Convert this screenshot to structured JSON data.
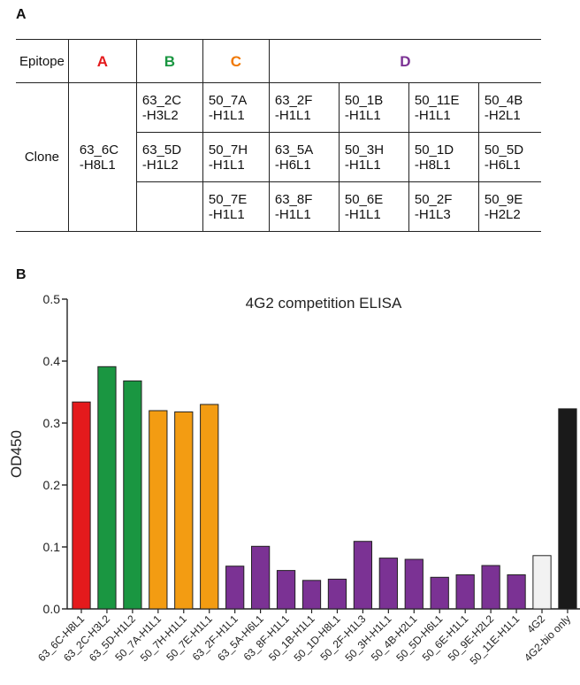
{
  "panel_a": {
    "label": "A",
    "header": {
      "epitope": "Epitope",
      "A": "A",
      "B": "B",
      "C": "C",
      "D": "D"
    },
    "colors": {
      "A": "#e41a1c",
      "B": "#1a9641",
      "C": "#f07800",
      "D": "#7b3294"
    },
    "clone_label": "Clone",
    "clone_A": "63_6C\n-H8L1",
    "clone_B": [
      "63_2C\n-H3L2",
      "63_5D\n-H1L2",
      ""
    ],
    "clone_C": [
      "50_7A\n-H1L1",
      "50_7H\n-H1L1",
      "50_7E\n-H1L1"
    ],
    "clone_D": [
      [
        "63_2F\n-H1L1",
        "50_1B\n-H1L1",
        "50_11E\n-H1L1",
        "50_4B\n-H2L1"
      ],
      [
        "63_5A\n-H6L1",
        "50_3H\n-H1L1",
        "50_1D\n-H8L1",
        "50_5D\n-H6L1"
      ],
      [
        "63_8F\n-H1L1",
        "50_6E\n-H1L1",
        "50_2F\n-H1L3",
        "50_9E\n-H2L2"
      ]
    ]
  },
  "panel_b": {
    "label": "B"
  },
  "chart_data": {
    "type": "bar",
    "title": "4G2 competition ELISA",
    "xlabel": "",
    "ylabel": "OD450",
    "ylim": [
      0.0,
      0.5
    ],
    "yticks": [
      "0.0",
      "0.1",
      "0.2",
      "0.3",
      "0.4",
      "0.5"
    ],
    "categories": [
      "63_6C-H8L1",
      "63_2C-H3L2",
      "63_5D-H1L2",
      "50_7A-H1L1",
      "50_7H-H1L1",
      "50_7E-H1L1",
      "63_2F-H1L1",
      "63_5A-H6L1",
      "63_8F-H1L1",
      "50_1B-H1L1",
      "50_1D-H8L1",
      "50_2F-H1L3",
      "50_3H-H1L1",
      "50_4B-H2L1",
      "50_5D-H6L1",
      "50_6E-H1L1",
      "50_9E-H2L2",
      "50_11E-H1L1",
      "4G2",
      "4G2-bio only"
    ],
    "values": [
      0.334,
      0.391,
      0.368,
      0.32,
      0.318,
      0.33,
      0.069,
      0.101,
      0.062,
      0.046,
      0.048,
      0.109,
      0.082,
      0.08,
      0.051,
      0.055,
      0.07,
      0.055,
      0.086,
      0.323
    ],
    "bar_colors": [
      "#e41a1c",
      "#1a9641",
      "#1a9641",
      "#f39c12",
      "#f39c12",
      "#f39c12",
      "#7b3294",
      "#7b3294",
      "#7b3294",
      "#7b3294",
      "#7b3294",
      "#7b3294",
      "#7b3294",
      "#7b3294",
      "#7b3294",
      "#7b3294",
      "#7b3294",
      "#7b3294",
      "#f2f2f2",
      "#1a1a1a"
    ]
  }
}
